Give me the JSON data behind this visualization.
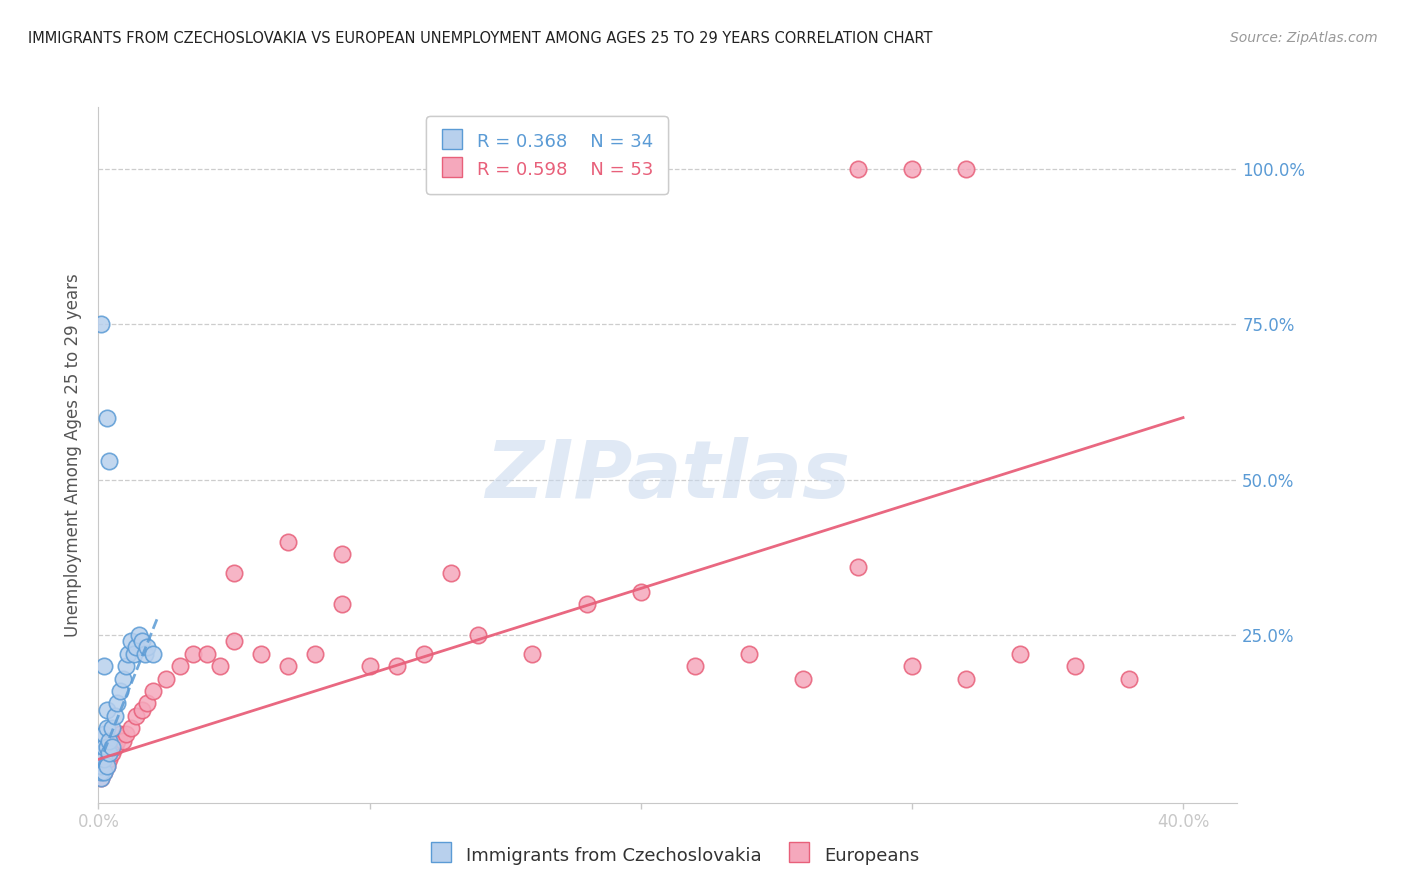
{
  "title": "IMMIGRANTS FROM CZECHOSLOVAKIA VS EUROPEAN UNEMPLOYMENT AMONG AGES 25 TO 29 YEARS CORRELATION CHART",
  "source": "Source: ZipAtlas.com",
  "ylabel": "Unemployment Among Ages 25 to 29 years",
  "xlim": [
    0.0,
    0.42
  ],
  "ylim": [
    -0.02,
    1.1
  ],
  "xticks": [
    0.0,
    0.1,
    0.2,
    0.3,
    0.4
  ],
  "xtick_labels": [
    "0.0%",
    "",
    "",
    "",
    "40.0%"
  ],
  "ytick_labels": [
    "100.0%",
    "75.0%",
    "50.0%",
    "25.0%"
  ],
  "ytick_positions": [
    1.0,
    0.75,
    0.5,
    0.25
  ],
  "background_color": "#ffffff",
  "grid_color": "#c8c8c8",
  "blue_fill": "#b8d0ed",
  "pink_fill": "#f5a8bc",
  "blue_edge": "#5b9bd5",
  "pink_edge": "#e8607a",
  "title_color": "#222222",
  "axis_label_color": "#555555",
  "tick_color": "#5b9bd5",
  "legend_label1": "Immigrants from Czechoslovakia",
  "legend_label2": "Europeans",
  "watermark_text": "ZIPatlas",
  "blue_scatter_x": [
    0.001,
    0.001,
    0.001,
    0.001,
    0.002,
    0.002,
    0.002,
    0.002,
    0.003,
    0.003,
    0.003,
    0.003,
    0.004,
    0.004,
    0.005,
    0.005,
    0.006,
    0.007,
    0.008,
    0.009,
    0.01,
    0.011,
    0.012,
    0.013,
    0.014,
    0.015,
    0.016,
    0.017,
    0.018,
    0.02,
    0.003,
    0.004,
    0.002,
    0.001
  ],
  "blue_scatter_y": [
    0.02,
    0.03,
    0.04,
    0.06,
    0.03,
    0.05,
    0.07,
    0.09,
    0.04,
    0.07,
    0.1,
    0.13,
    0.06,
    0.08,
    0.07,
    0.1,
    0.12,
    0.14,
    0.16,
    0.18,
    0.2,
    0.22,
    0.24,
    0.22,
    0.23,
    0.25,
    0.24,
    0.22,
    0.23,
    0.22,
    0.6,
    0.53,
    0.2,
    0.75
  ],
  "pink_scatter_x": [
    0.001,
    0.001,
    0.002,
    0.002,
    0.003,
    0.003,
    0.004,
    0.004,
    0.005,
    0.005,
    0.006,
    0.007,
    0.008,
    0.009,
    0.01,
    0.012,
    0.014,
    0.016,
    0.018,
    0.02,
    0.025,
    0.03,
    0.035,
    0.04,
    0.045,
    0.05,
    0.06,
    0.07,
    0.08,
    0.09,
    0.1,
    0.12,
    0.14,
    0.16,
    0.18,
    0.2,
    0.22,
    0.24,
    0.26,
    0.28,
    0.3,
    0.32,
    0.34,
    0.36,
    0.38,
    0.05,
    0.07,
    0.09,
    0.11,
    0.13,
    0.28,
    0.3,
    0.32
  ],
  "pink_scatter_y": [
    0.02,
    0.04,
    0.03,
    0.05,
    0.04,
    0.06,
    0.05,
    0.07,
    0.06,
    0.08,
    0.07,
    0.08,
    0.09,
    0.08,
    0.09,
    0.1,
    0.12,
    0.13,
    0.14,
    0.16,
    0.18,
    0.2,
    0.22,
    0.22,
    0.2,
    0.24,
    0.22,
    0.2,
    0.22,
    0.3,
    0.2,
    0.22,
    0.25,
    0.22,
    0.3,
    0.32,
    0.2,
    0.22,
    0.18,
    0.36,
    0.2,
    0.18,
    0.22,
    0.2,
    0.18,
    0.35,
    0.4,
    0.38,
    0.2,
    0.35,
    1.0,
    1.0,
    1.0
  ],
  "blue_line_x": [
    0.0,
    0.022
  ],
  "blue_line_y": [
    0.04,
    0.28
  ],
  "pink_line_x": [
    0.0,
    0.4
  ],
  "pink_line_y": [
    0.05,
    0.6
  ]
}
